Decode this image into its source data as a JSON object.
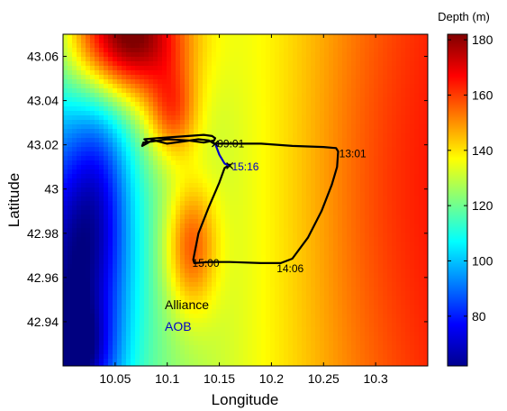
{
  "chart_data": {
    "type": "heatmap",
    "title": "",
    "xlabel": "Longitude",
    "ylabel": "Latitude",
    "xlim": [
      10.0,
      10.35
    ],
    "ylim": [
      42.92,
      43.07
    ],
    "xticks": [
      10.05,
      10.1,
      10.15,
      10.2,
      10.25,
      10.3
    ],
    "xtick_labels": [
      "10.05",
      "10.1",
      "10.15",
      "10.2",
      "10.25",
      "10.3"
    ],
    "yticks": [
      42.94,
      42.96,
      42.98,
      43.0,
      43.02,
      43.04,
      43.06
    ],
    "ytick_labels": [
      "42.94",
      "42.96",
      "42.98",
      "43",
      "43.02",
      "43.04",
      "43.06"
    ],
    "colorbar": {
      "label": "Depth (m)",
      "range": [
        62,
        182
      ],
      "ticks": [
        80,
        100,
        120,
        140,
        160,
        180
      ],
      "tick_labels": [
        "80",
        "100",
        "120",
        "140",
        "160",
        "180"
      ],
      "colormap": "jet"
    },
    "series": [
      {
        "name": "Alliance",
        "color": "#000000",
        "points": [
          [
            10.076,
            43.0195
          ],
          [
            10.082,
            43.021
          ],
          [
            10.078,
            43.0225
          ],
          [
            10.09,
            43.023
          ],
          [
            10.105,
            43.0235
          ],
          [
            10.12,
            43.024
          ],
          [
            10.135,
            43.0245
          ],
          [
            10.143,
            43.024
          ],
          [
            10.146,
            43.023
          ],
          [
            10.145,
            43.022
          ],
          [
            10.135,
            43.021
          ],
          [
            10.12,
            43.022
          ],
          [
            10.1,
            43.0225
          ],
          [
            10.085,
            43.0215
          ],
          [
            10.077,
            43.021
          ],
          [
            10.076,
            43.0195
          ],
          [
            10.086,
            43.0222
          ],
          [
            10.1,
            43.0205
          ],
          [
            10.115,
            43.0215
          ],
          [
            10.13,
            43.0225
          ],
          [
            10.14,
            43.022
          ],
          [
            10.145,
            43.0205
          ],
          [
            10.16,
            43.0205
          ],
          [
            10.19,
            43.0205
          ],
          [
            10.22,
            43.0195
          ],
          [
            10.25,
            43.019
          ],
          [
            10.262,
            43.0185
          ],
          [
            10.264,
            43.017
          ],
          [
            10.263,
            43.01
          ],
          [
            10.258,
            43.002
          ],
          [
            10.248,
            42.99
          ],
          [
            10.235,
            42.978
          ],
          [
            10.22,
            42.9685
          ],
          [
            10.209,
            42.9665
          ],
          [
            10.19,
            42.9665
          ],
          [
            10.16,
            42.967
          ],
          [
            10.14,
            42.967
          ],
          [
            10.126,
            42.9665
          ],
          [
            10.125,
            42.968
          ],
          [
            10.13,
            42.98
          ],
          [
            10.14,
            42.992
          ],
          [
            10.15,
            43.003
          ],
          [
            10.155,
            43.0095
          ],
          [
            10.16,
            43.011
          ]
        ]
      },
      {
        "name": "AOB",
        "color": "#0000c8",
        "points": [
          [
            10.146,
            43.0205
          ],
          [
            10.15,
            43.0155
          ],
          [
            10.155,
            43.0115
          ],
          [
            10.16,
            43.0105
          ]
        ]
      }
    ],
    "markers": [
      {
        "name": "AOB start",
        "x": 10.146,
        "y": 43.0205
      },
      {
        "name": "AOB end",
        "x": 10.16,
        "y": 43.0105
      }
    ],
    "annotations": [
      {
        "text": "09:01",
        "x": 10.148,
        "y": 43.0205,
        "color": "#000000"
      },
      {
        "text": "15:16",
        "x": 10.162,
        "y": 43.01,
        "color": "#0000c8"
      },
      {
        "text": "13:01",
        "x": 10.265,
        "y": 43.016,
        "color": "#000000"
      },
      {
        "text": "15:00",
        "x": 10.124,
        "y": 42.9665,
        "color": "#000000"
      },
      {
        "text": "14:06",
        "x": 10.205,
        "y": 42.964,
        "color": "#000000"
      }
    ],
    "legend": {
      "placement": "lower-left",
      "entries": [
        {
          "label": "Alliance",
          "color": "#000000"
        },
        {
          "label": "AOB",
          "color": "#0000c8"
        }
      ]
    }
  }
}
